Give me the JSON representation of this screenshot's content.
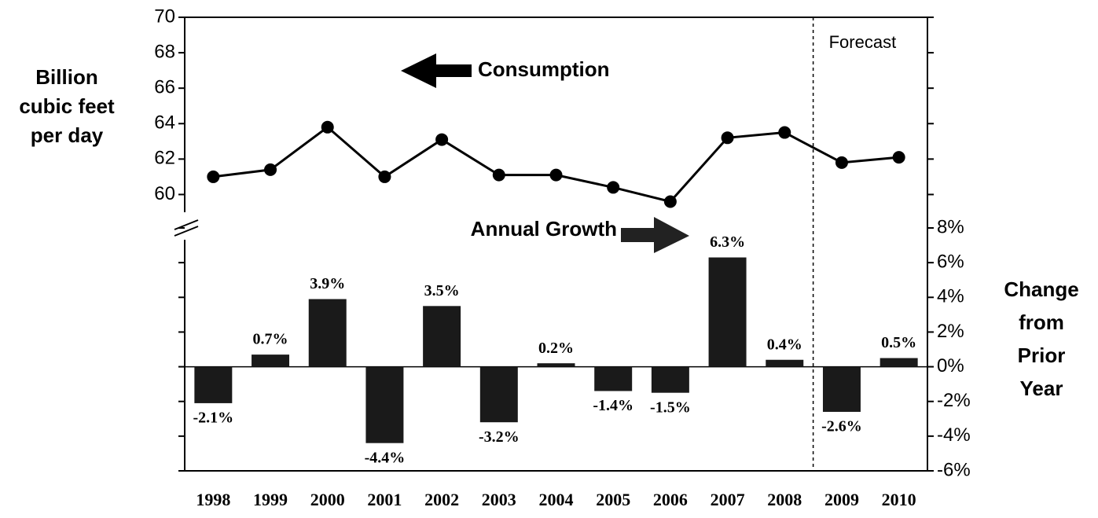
{
  "chart_data": {
    "type": "combo",
    "categories": [
      "1998",
      "1999",
      "2000",
      "2001",
      "2002",
      "2003",
      "2004",
      "2005",
      "2006",
      "2007",
      "2008",
      "2009",
      "2010"
    ],
    "series": [
      {
        "name": "Consumption",
        "type": "line",
        "axis": "y",
        "color": "#000000",
        "values": [
          61.0,
          61.4,
          63.8,
          61.0,
          63.1,
          61.1,
          61.1,
          60.4,
          59.6,
          63.2,
          63.5,
          61.8,
          62.1
        ]
      },
      {
        "name": "Annual Growth",
        "type": "bar",
        "axis": "y2",
        "color": "#1a1a1a",
        "values": [
          -2.1,
          0.7,
          3.9,
          -4.4,
          3.5,
          -3.2,
          0.2,
          -1.4,
          -1.5,
          6.3,
          0.4,
          -2.6,
          0.5
        ],
        "value_labels": [
          "-2.1%",
          "0.7%",
          "3.9%",
          "-4.4%",
          "3.5%",
          "-3.2%",
          "0.2%",
          "-1.4%",
          "-1.5%",
          "6.3%",
          "0.4%",
          "-2.6%",
          "0.5%"
        ]
      }
    ],
    "y_label": [
      "Billion",
      "cubic feet",
      "per day"
    ],
    "y2_label": [
      "Change",
      "from",
      "Prior",
      "Year"
    ],
    "ylim": [
      59,
      70
    ],
    "yticks": [
      60,
      62,
      64,
      66,
      68,
      70
    ],
    "y2lim": [
      -6,
      8
    ],
    "y2ticks": [
      {
        "value": -6,
        "label": "-6%"
      },
      {
        "value": -4,
        "label": "-4%"
      },
      {
        "value": -2,
        "label": "-2%"
      },
      {
        "value": 0,
        "label": "0%"
      },
      {
        "value": 2,
        "label": "2%"
      },
      {
        "value": 4,
        "label": "4%"
      },
      {
        "value": 6,
        "label": "6%"
      },
      {
        "value": 8,
        "label": "8%"
      }
    ],
    "forecast_label": "Forecast",
    "forecast_start": "2009"
  }
}
